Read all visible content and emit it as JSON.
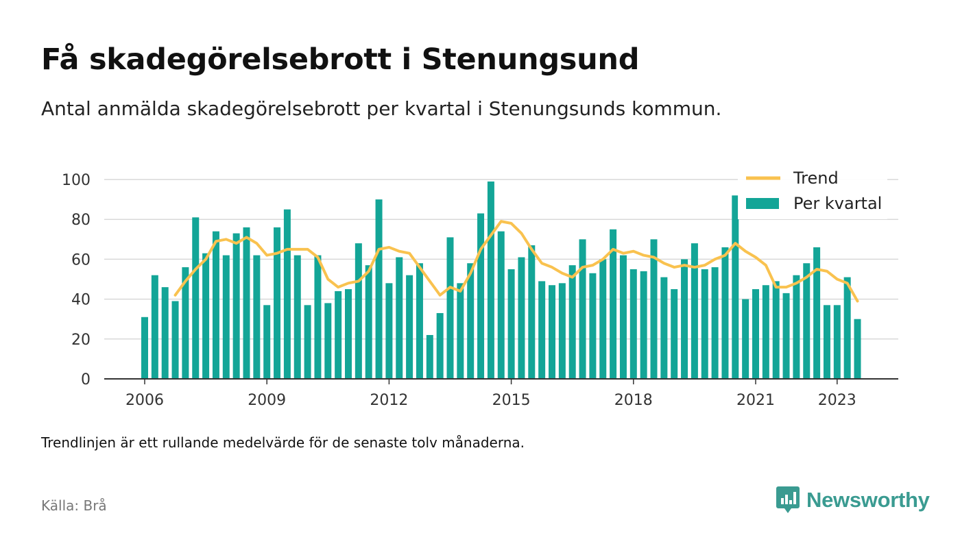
{
  "header": {
    "title": "Få skadegörelsebrott i Stenungsund",
    "subtitle": "Antal anmälda skadegörelsebrott per kvartal i Stenungsunds kommun."
  },
  "footer": {
    "note": "Trendlinjen är ett rullande medelvärde för de senaste tolv månaderna.",
    "source": "Källa: Brå",
    "brand": "Newsworthy",
    "brand_icon": "chart-badge-icon"
  },
  "colors": {
    "bars": "#13a597",
    "trend": "#f9c24f",
    "grid": "#d9d9d9",
    "axis": "#333333",
    "brand": "#3a9b91"
  },
  "chart_data": {
    "type": "bar",
    "x_start": "2006 Q1",
    "x_tick_labels": [
      "2006",
      "2009",
      "2012",
      "2015",
      "2018",
      "2021",
      "2023"
    ],
    "ylim": [
      0,
      100
    ],
    "y_ticks": [
      0,
      20,
      40,
      60,
      80,
      100
    ],
    "grid": true,
    "legend_position": "top-right",
    "series": [
      {
        "name": "Per kvartal",
        "type": "bar",
        "values": [
          31,
          52,
          46,
          39,
          56,
          81,
          63,
          74,
          62,
          73,
          76,
          62,
          37,
          76,
          85,
          62,
          37,
          62,
          38,
          44,
          45,
          68,
          57,
          90,
          48,
          61,
          52,
          58,
          22,
          33,
          71,
          48,
          58,
          83,
          99,
          74,
          55,
          61,
          67,
          49,
          47,
          48,
          57,
          70,
          53,
          60,
          75,
          62,
          55,
          54,
          70,
          51,
          45,
          60,
          68,
          55,
          56,
          66,
          92,
          40,
          45,
          47,
          49,
          43,
          52,
          58,
          66,
          37,
          37,
          51,
          30
        ]
      },
      {
        "name": "Trend",
        "type": "line",
        "values": [
          null,
          null,
          null,
          42,
          49,
          55,
          60,
          69,
          70,
          68,
          71,
          68,
          62,
          63,
          65,
          65,
          65,
          61,
          50,
          46,
          48,
          49,
          54,
          65,
          66,
          64,
          63,
          56,
          49,
          42,
          46,
          44,
          53,
          65,
          72,
          79,
          78,
          73,
          65,
          58,
          56,
          53,
          51,
          56,
          57,
          60,
          65,
          63,
          64,
          62,
          61,
          58,
          56,
          57,
          56,
          57,
          60,
          62,
          68,
          64,
          61,
          57,
          46,
          46,
          48,
          51,
          55,
          54,
          50,
          48,
          39
        ]
      }
    ]
  }
}
